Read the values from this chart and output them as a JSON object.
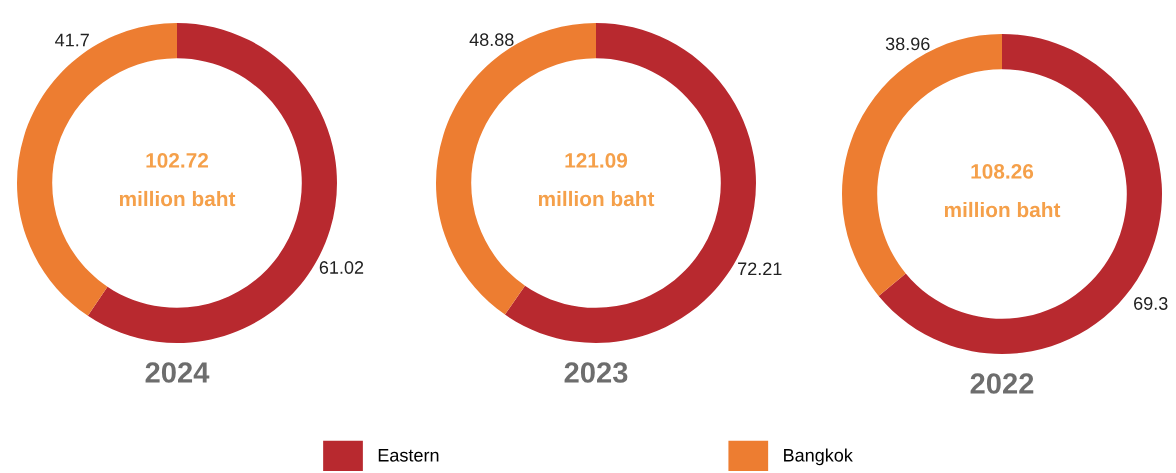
{
  "chart_data": [
    {
      "type": "donut",
      "title": "2024",
      "categories": [
        "Eastern",
        "Bangkok"
      ],
      "values": [
        61.02,
        41.7
      ],
      "colors": [
        "#b8292f",
        "#ed7d31"
      ],
      "data_labels": true,
      "annotations": [
        "102.72",
        "million baht"
      ],
      "legend": "bottom"
    },
    {
      "type": "donut",
      "title": "2023",
      "categories": [
        null,
        null
      ],
      "values": [
        72.21,
        48.88
      ],
      "colors": [
        "#b8292f",
        "#ed7d31"
      ],
      "data_labels": true,
      "annotations": [
        "121.09",
        "million baht"
      ]
    },
    {
      "type": "donut",
      "title": "2022",
      "categories": [
        null,
        null
      ],
      "values": [
        69.3,
        38.96
      ],
      "colors": [
        "#b8292f",
        "#ed7d31"
      ],
      "data_labels": true,
      "annotations": [
        "108.26",
        "million baht"
      ]
    }
  ]
}
